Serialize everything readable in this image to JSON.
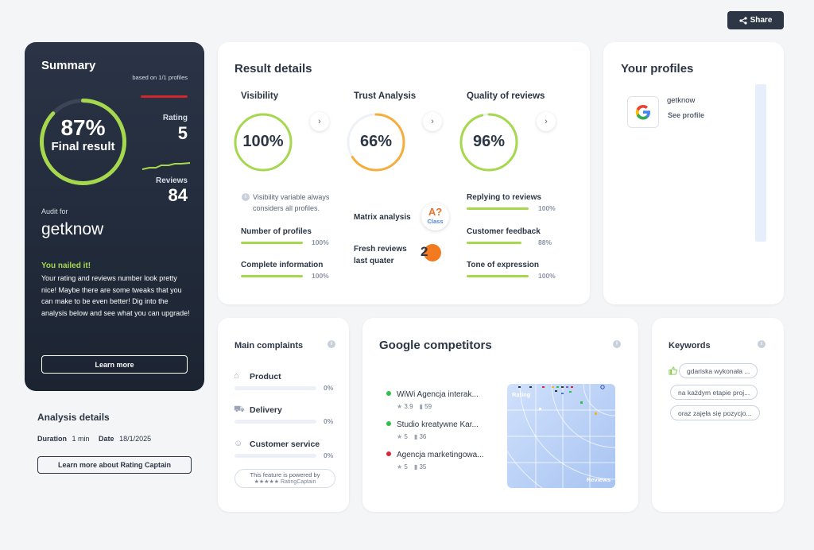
{
  "share_label": "Share",
  "summary": {
    "title": "Summary",
    "based_on": "based on 1/1 profiles",
    "final_pct": "87%",
    "final_label": "Final result",
    "final_fraction": 0.87,
    "rating_label": "Rating",
    "rating_value": "5",
    "reviews_label": "Reviews",
    "reviews_value": "84",
    "audit_for_label": "Audit for",
    "audit_name": "getknow",
    "nailed_title": "You nailed it!",
    "nailed_text": "Your rating and reviews number look pretty nice! Maybe there are some tweaks that you can make to be even better! Dig into the analysis below and see what you can upgrade!",
    "learn_more": "Learn more"
  },
  "analysis": {
    "title": "Analysis details",
    "duration_label": "Duration",
    "duration_value": "1 min",
    "date_label": "Date",
    "date_value": "18/1/2025",
    "button": "Learn more about Rating Captain"
  },
  "result": {
    "title": "Result details",
    "visibility": {
      "title": "Visibility",
      "value": "100%",
      "fraction": 1.0,
      "color": "#a6d84e",
      "note": "Visibility variable always considers all profiles.",
      "metrics": [
        {
          "label": "Number of profiles",
          "pct": "100%",
          "fraction": 1.0
        },
        {
          "label": "Complete information",
          "pct": "100%",
          "fraction": 1.0
        }
      ]
    },
    "trust": {
      "title": "Trust Analysis",
      "value": "66%",
      "fraction": 0.66,
      "color": "#f6ad3c",
      "matrix_label": "Matrix analysis",
      "matrix_grade": "A?",
      "matrix_class": "Class",
      "fresh_label": "Fresh reviews last quater",
      "fresh_value": "2"
    },
    "quality": {
      "title": "Quality of reviews",
      "value": "96%",
      "fraction": 0.96,
      "color": "#a6d84e",
      "metrics": [
        {
          "label": "Replying to reviews",
          "pct": "100%",
          "fraction": 1.0
        },
        {
          "label": "Customer feedback",
          "pct": "88%",
          "fraction": 0.88
        },
        {
          "label": "Tone of expression",
          "pct": "100%",
          "fraction": 1.0
        }
      ]
    }
  },
  "profiles": {
    "title": "Your profiles",
    "items": [
      {
        "name": "getknow",
        "link": "See profile"
      }
    ]
  },
  "complaints": {
    "title": "Main complaints",
    "items": [
      {
        "label": "Product",
        "pct": "0%"
      },
      {
        "label": "Delivery",
        "pct": "0%"
      },
      {
        "label": "Customer service",
        "pct": "0%"
      }
    ],
    "powered_line1": "This feature is powered by",
    "powered_line2": "RatingCaptain"
  },
  "competitors": {
    "title": "Google competitors",
    "items": [
      {
        "name": "WiWi Agencja interak...",
        "rating": "3.9",
        "reviews": "59",
        "color": "#2fbf4a"
      },
      {
        "name": "Studio kreatywne Kar...",
        "rating": "5",
        "reviews": "36",
        "color": "#2fbf4a"
      },
      {
        "name": "Agencja marketingowa...",
        "rating": "5",
        "reviews": "35",
        "color": "#d9263a"
      }
    ],
    "chart_y_label": "Rating",
    "chart_x_label": "Reviews"
  },
  "keywords": {
    "title": "Keywords",
    "items": [
      "gdariska wykonała ...",
      "na każdym etapie proj...",
      "oraz zajęła się pozycjo..."
    ]
  }
}
